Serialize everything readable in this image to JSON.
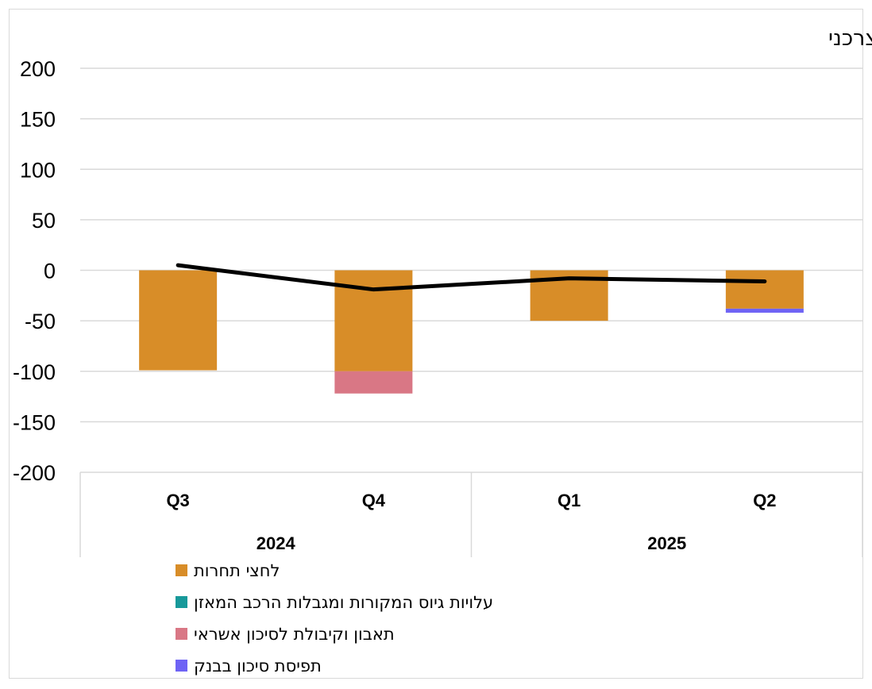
{
  "chart_data": {
    "type": "bar",
    "title": "ג. אשראי צרכני",
    "stacked": true,
    "categories": [
      "Q3",
      "Q4",
      "Q1",
      "Q2"
    ],
    "groups": [
      {
        "label": "2024",
        "categories": [
          "Q3",
          "Q4"
        ]
      },
      {
        "label": "2025",
        "categories": [
          "Q1",
          "Q2"
        ]
      }
    ],
    "ylim": [
      -200,
      200
    ],
    "yticks": [
      200,
      150,
      100,
      50,
      0,
      -50,
      -100,
      -150,
      -200
    ],
    "grid": true,
    "legend_position": "bottom",
    "series": [
      {
        "name": "לחצי תחרות",
        "type": "bar",
        "color": "#d88d28",
        "values": [
          -99,
          -100,
          -50,
          -38
        ]
      },
      {
        "name": "עלויות גיוס המקורות ומגבלות הרכב המאזן",
        "type": "bar",
        "color": "#17999a",
        "values": [
          0,
          0,
          0,
          0
        ]
      },
      {
        "name": "תאבון וקיבולת לסיכון אשראי",
        "type": "bar",
        "color": "#d97785",
        "values": [
          0,
          -22,
          0,
          0
        ]
      },
      {
        "name": "תפיסת סיכון בבנק",
        "type": "bar",
        "color": "#6e63f5",
        "values": [
          0,
          0,
          0,
          -4
        ]
      },
      {
        "type": "line",
        "color": "#000000",
        "values": [
          5,
          -19,
          -8,
          -11
        ]
      }
    ]
  }
}
